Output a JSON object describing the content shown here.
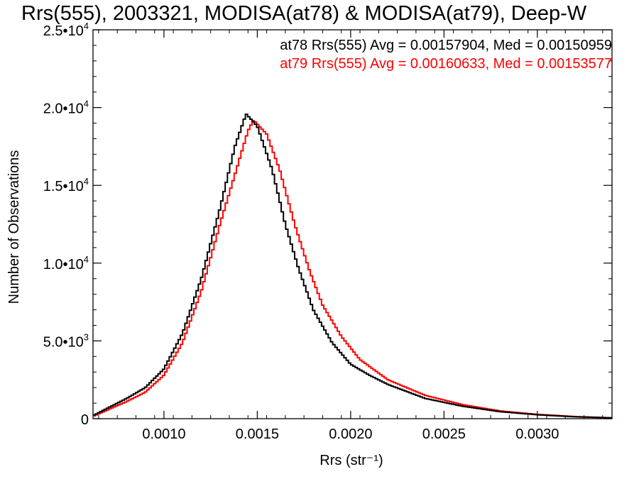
{
  "chart_data": {
    "type": "line",
    "title": "Rrs(555), 2003321, MODISA(at78) & MODISA(at79), Deep-W",
    "xlabel": "Rrs (str⁻¹)",
    "ylabel": "Number of Observations",
    "xlim": [
      0.00062,
      0.0034
    ],
    "ylim": [
      0,
      25000
    ],
    "grid": false,
    "legend_position": "top-right",
    "x_ticks": [
      {
        "value": 0.001,
        "label": "0.0010"
      },
      {
        "value": 0.0015,
        "label": "0.0015"
      },
      {
        "value": 0.002,
        "label": "0.0020"
      },
      {
        "value": 0.0025,
        "label": "0.0025"
      },
      {
        "value": 0.003,
        "label": "0.0030"
      }
    ],
    "y_ticks": [
      {
        "value": 0,
        "mantissa": "0",
        "exponent": ""
      },
      {
        "value": 5000,
        "mantissa": "5.0•10",
        "exponent": "3"
      },
      {
        "value": 10000,
        "mantissa": "1.0•10",
        "exponent": "4"
      },
      {
        "value": 15000,
        "mantissa": "1.5•10",
        "exponent": "4"
      },
      {
        "value": 20000,
        "mantissa": "2.0•10",
        "exponent": "4"
      },
      {
        "value": 25000,
        "mantissa": "2.5•10",
        "exponent": "4"
      }
    ],
    "annotations": [
      {
        "text": "at78 Rrs(555) Avg = 0.00157904, Med = 0.00150959",
        "color": "#000000"
      },
      {
        "text": "at79 Rrs(555) Avg = 0.00160633, Med = 0.00153577",
        "color": "#ff0000"
      }
    ],
    "series": [
      {
        "color": "#000000",
        "points": [
          [
            0.00062,
            200
          ],
          [
            0.0008,
            1300
          ],
          [
            0.0009,
            2000
          ],
          [
            0.001,
            3200
          ],
          [
            0.0011,
            5500
          ],
          [
            0.0012,
            9000
          ],
          [
            0.0013,
            13500
          ],
          [
            0.00138,
            17500
          ],
          [
            0.00144,
            19600
          ],
          [
            0.0015,
            18800
          ],
          [
            0.00158,
            16000
          ],
          [
            0.00165,
            12500
          ],
          [
            0.00172,
            9700
          ],
          [
            0.0018,
            7000
          ],
          [
            0.0019,
            4900
          ],
          [
            0.002,
            3500
          ],
          [
            0.0021,
            2800
          ],
          [
            0.0022,
            2200
          ],
          [
            0.0024,
            1300
          ],
          [
            0.0026,
            800
          ],
          [
            0.0028,
            450
          ],
          [
            0.003,
            250
          ],
          [
            0.0032,
            120
          ],
          [
            0.0034,
            50
          ]
        ]
      },
      {
        "color": "#ff0000",
        "points": [
          [
            0.00062,
            150
          ],
          [
            0.0008,
            1100
          ],
          [
            0.0009,
            1700
          ],
          [
            0.001,
            2800
          ],
          [
            0.0011,
            4900
          ],
          [
            0.0012,
            8200
          ],
          [
            0.0013,
            12500
          ],
          [
            0.0014,
            16500
          ],
          [
            0.00145,
            18500
          ],
          [
            0.00148,
            19200
          ],
          [
            0.00155,
            18300
          ],
          [
            0.00162,
            16000
          ],
          [
            0.0017,
            12500
          ],
          [
            0.00178,
            9500
          ],
          [
            0.00185,
            7300
          ],
          [
            0.00195,
            5300
          ],
          [
            0.00205,
            3800
          ],
          [
            0.0022,
            2500
          ],
          [
            0.0024,
            1500
          ],
          [
            0.0026,
            900
          ],
          [
            0.0028,
            500
          ],
          [
            0.003,
            280
          ],
          [
            0.0032,
            140
          ],
          [
            0.0034,
            60
          ]
        ]
      }
    ]
  }
}
